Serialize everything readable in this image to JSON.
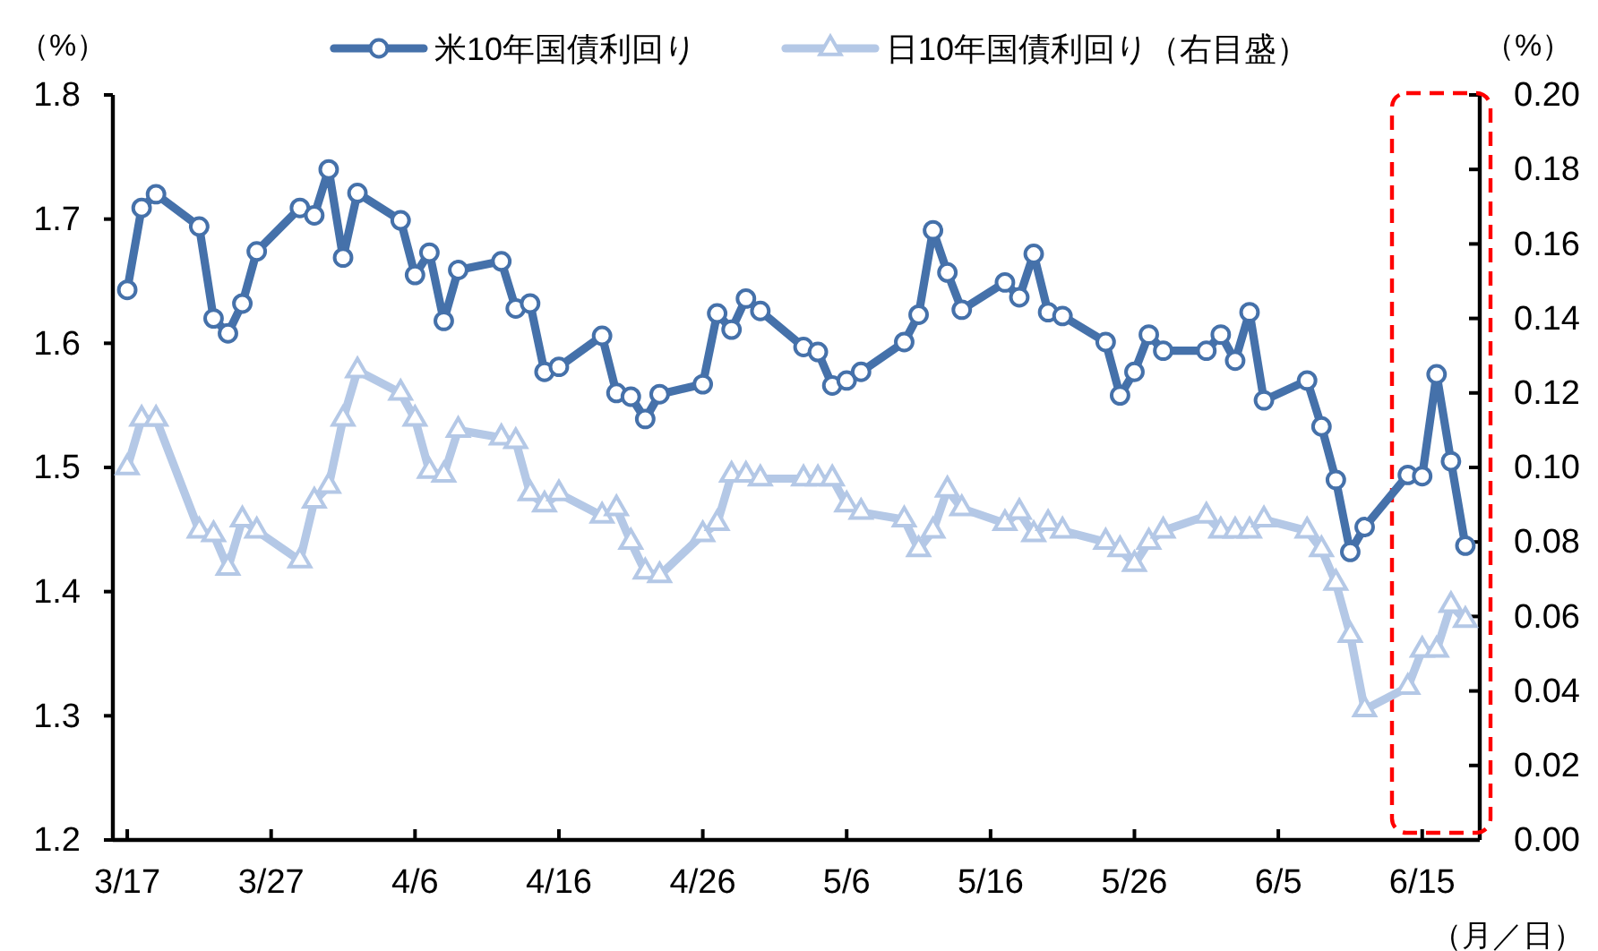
{
  "chart_data": {
    "type": "line",
    "xlabel": "（月／日）",
    "ylabel": "（%）",
    "y2label": "（%）",
    "x": [
      "--03-17",
      "--03-18",
      "--03-19",
      "--03-22",
      "--03-23",
      "--03-24",
      "--03-25",
      "--03-26",
      "--03-29",
      "--03-30",
      "--03-31",
      "--04-01",
      "--04-02",
      "--04-05",
      "--04-06",
      "--04-07",
      "--04-08",
      "--04-09",
      "--04-12",
      "--04-13",
      "--04-14",
      "--04-15",
      "--04-16",
      "--04-19",
      "--04-20",
      "--04-21",
      "--04-22",
      "--04-23",
      "--04-26",
      "--04-27",
      "--04-28",
      "--04-29",
      "--04-30",
      "--05-03",
      "--05-04",
      "--05-05",
      "--05-06",
      "--05-07",
      "--05-10",
      "--05-11",
      "--05-12",
      "--05-13",
      "--05-14",
      "--05-17",
      "--05-18",
      "--05-19",
      "--05-20",
      "--05-21",
      "--05-24",
      "--05-25",
      "--05-26",
      "--05-27",
      "--05-28",
      "--05-31",
      "--06-01",
      "--06-02",
      "--06-03",
      "--06-04",
      "--06-07",
      "--06-08",
      "--06-09",
      "--06-10",
      "--06-11",
      "--06-14",
      "--06-15",
      "--06-16",
      "--06-17",
      "--06-18"
    ],
    "series": [
      {
        "name": "米10年国債利回り",
        "color": "#4571aa",
        "marker": "circle",
        "values": [
          1.643,
          1.709,
          1.72,
          1.694,
          1.62,
          1.608,
          1.632,
          1.674,
          1.709,
          1.703,
          1.74,
          1.669,
          1.721,
          1.699,
          1.655,
          1.673,
          1.618,
          1.659,
          1.666,
          1.628,
          1.632,
          1.577,
          1.581,
          1.606,
          1.56,
          1.557,
          1.539,
          1.559,
          1.567,
          1.624,
          1.611,
          1.636,
          1.626,
          1.597,
          1.593,
          1.566,
          1.57,
          1.577,
          1.601,
          1.623,
          1.691,
          1.657,
          1.627,
          1.649,
          1.637,
          1.672,
          1.625,
          1.622,
          1.601,
          1.558,
          1.577,
          1.607,
          1.594,
          1.594,
          1.607,
          1.586,
          1.625,
          1.554,
          1.57,
          1.533,
          1.49,
          1.432,
          1.452,
          1.494,
          1.493,
          1.575,
          1.505,
          1.437
        ]
      },
      {
        "name": "日10年国債利回り（右目盛）",
        "color": "#b4c8e6",
        "marker": "triangle",
        "axis": "y2",
        "values": [
          0.1,
          0.113,
          0.113,
          0.083,
          0.082,
          0.073,
          0.086,
          0.083,
          0.075,
          0.091,
          0.095,
          0.113,
          0.126,
          0.12,
          0.113,
          0.099,
          0.098,
          0.11,
          0.108,
          0.107,
          0.093,
          0.09,
          0.093,
          0.087,
          0.089,
          0.08,
          0.072,
          0.071,
          0.082,
          0.085,
          0.098,
          0.098,
          0.097,
          0.097,
          0.097,
          0.097,
          0.09,
          0.088,
          0.086,
          0.078,
          0.083,
          0.094,
          0.089,
          0.085,
          0.088,
          0.082,
          0.085,
          0.083,
          0.08,
          0.078,
          0.074,
          0.08,
          0.083,
          0.087,
          0.083,
          0.083,
          0.083,
          0.086,
          0.083,
          0.078,
          0.069,
          0.055,
          0.035,
          0.041,
          0.051,
          0.051,
          0.063,
          0.059
        ]
      }
    ],
    "xlim": [
      "--03-16",
      "--06-19"
    ],
    "xticks": [
      {
        "value": "--03-17",
        "label": "3/17"
      },
      {
        "value": "--03-27",
        "label": "3/27"
      },
      {
        "value": "--04-06",
        "label": "4/6"
      },
      {
        "value": "--04-16",
        "label": "4/16"
      },
      {
        "value": "--04-26",
        "label": "4/26"
      },
      {
        "value": "--05-06",
        "label": "5/6"
      },
      {
        "value": "--05-16",
        "label": "5/16"
      },
      {
        "value": "--05-26",
        "label": "5/26"
      },
      {
        "value": "--06-05",
        "label": "6/5"
      },
      {
        "value": "--06-15",
        "label": "6/15"
      }
    ],
    "ylim": [
      1.2,
      1.8
    ],
    "yticks": [
      1.2,
      1.3,
      1.4,
      1.5,
      1.6,
      1.7,
      1.8
    ],
    "y2lim": [
      0,
      0.2
    ],
    "y2ticks": [
      {
        "value": 0,
        "label": "0.00"
      },
      {
        "value": 0.02,
        "label": "0.02"
      },
      {
        "value": 0.04,
        "label": "0.04"
      },
      {
        "value": 0.06,
        "label": "0.06"
      },
      {
        "value": 0.08,
        "label": "0.08"
      },
      {
        "value": 0.1,
        "label": "0.10"
      },
      {
        "value": 0.12,
        "label": "0.12"
      },
      {
        "value": 0.14,
        "label": "0.14"
      },
      {
        "value": 0.16,
        "label": "0.16"
      },
      {
        "value": 0.18,
        "label": "0.18"
      },
      {
        "value": 0.2,
        "label": "0.20"
      }
    ],
    "legend": "top",
    "line_style": "solid"
  }
}
